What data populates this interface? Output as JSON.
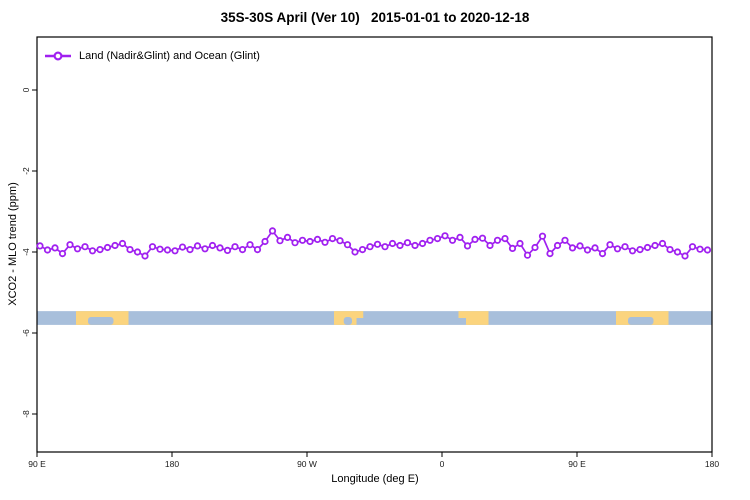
{
  "window": {
    "background": "#ffffff"
  },
  "chart_data": {
    "type": "line",
    "title": "35S-30S April (Ver 10)   2015-01-01 to 2020-12-18",
    "xlabel": "Longitude (deg E)",
    "ylabel": "XCO2 - MLO trend (ppm)",
    "grid": "off",
    "legend": {
      "position": "top-left-inside",
      "entries": [
        {
          "label": "Land (Nadir&Glint) and Ocean (Glint)",
          "color": "#A020F0",
          "marker": "open-circle-on-line"
        }
      ]
    },
    "x_axis": {
      "span_deg": 450,
      "note": "longitude wraps: 90E..180..90W..0..90E..180; last 90 deg repeats first 90 deg",
      "ticks": [
        {
          "label": "90 E",
          "deg": 0
        },
        {
          "label": "180",
          "deg": 90
        },
        {
          "label": "90 W",
          "deg": 180
        },
        {
          "label": "0",
          "deg": 270
        },
        {
          "label": "90 E",
          "deg": 360
        },
        {
          "label": "180",
          "deg": 450
        }
      ]
    },
    "y_axis": {
      "min": -8.95,
      "max": 1.3,
      "ticks": [
        0,
        -2,
        -4,
        -6,
        -8
      ]
    },
    "series": [
      {
        "name": "Land (Nadir&Glint) and Ocean (Glint)",
        "color": "#A020F0",
        "marker_fill": "#ffffff",
        "x_start_deg": 2,
        "x_step_deg": 5,
        "values": [
          -3.85,
          -3.95,
          -3.9,
          -4.04,
          -3.82,
          -3.92,
          -3.87,
          -3.97,
          -3.94,
          -3.89,
          -3.84,
          -3.79,
          -3.94,
          -4.0,
          -4.1,
          -3.87,
          -3.93,
          -3.95,
          -3.97,
          -3.88,
          -3.94,
          -3.85,
          -3.92,
          -3.84,
          -3.9,
          -3.96,
          -3.87,
          -3.94,
          -3.82,
          -3.94,
          -3.74,
          -3.48,
          -3.72,
          -3.64,
          -3.77,
          -3.71,
          -3.74,
          -3.69,
          -3.76,
          -3.67,
          -3.72,
          -3.82,
          -4.0,
          -3.94,
          -3.87,
          -3.81,
          -3.87,
          -3.79,
          -3.84,
          -3.77,
          -3.84,
          -3.79,
          -3.71,
          -3.67,
          -3.6,
          -3.71,
          -3.64,
          -3.85,
          -3.69,
          -3.66,
          -3.84,
          -3.71,
          -3.67,
          -3.91,
          -3.79,
          -4.08,
          -3.89,
          -3.61,
          -4.04,
          -3.84,
          -3.71,
          -3.9,
          -3.85,
          -3.95,
          -3.9,
          -4.04,
          -3.82,
          -3.92,
          -3.87,
          -3.97,
          -3.94,
          -3.89,
          -3.84,
          -3.79,
          -3.94,
          -4.0,
          -4.1,
          -3.87,
          -3.93,
          -3.95
        ]
      }
    ],
    "land_ocean_band": {
      "description": "land(yellow)/ocean(blue) strip for the 35S-30S latitude belt",
      "value_top": -5.46,
      "value_bottom": -5.8,
      "ocean_color": "#A8BFDB",
      "land_color": "#FBD47E",
      "land_full_deg": [
        [
          26,
          61
        ],
        [
          198,
          213
        ],
        [
          286,
          301
        ],
        [
          386,
          421
        ]
      ],
      "land_top_half_deg": [
        [
          213,
          217.5
        ],
        [
          281,
          286
        ]
      ],
      "ocean_notch_bottom_deg": [
        [
          34,
          51
        ],
        [
          204.5,
          210
        ],
        [
          394,
          411
        ]
      ]
    }
  }
}
